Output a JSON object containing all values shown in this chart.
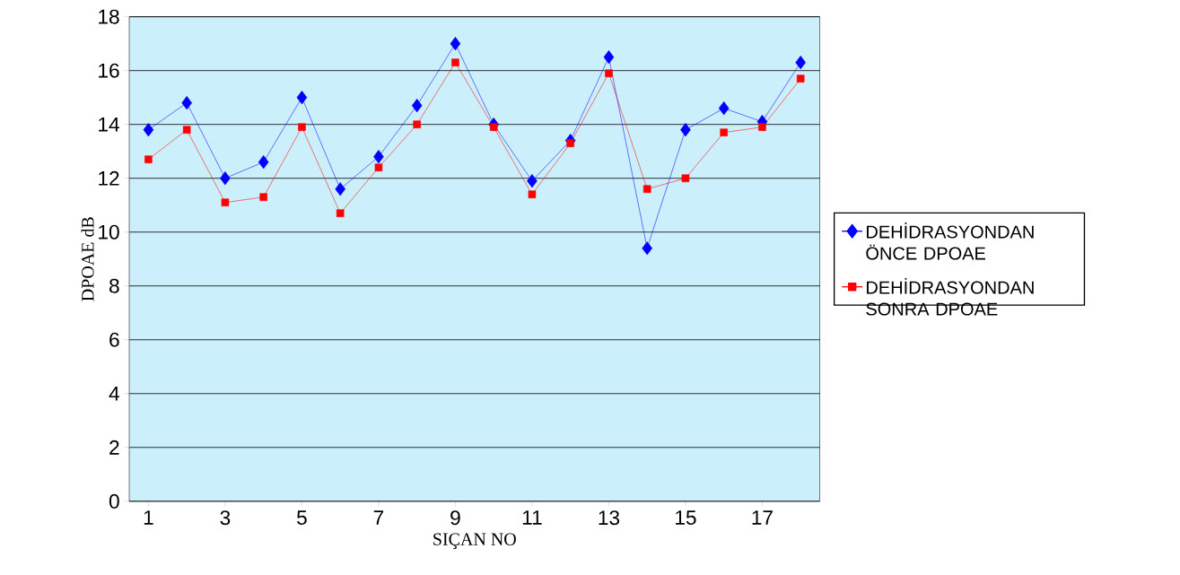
{
  "chart_data": {
    "type": "line",
    "xlabel": "SIÇAN NO",
    "ylabel": "DPOAE dB",
    "categories": [
      "1",
      null,
      "3",
      null,
      "5",
      null,
      "7",
      null,
      "9",
      null,
      "11",
      null,
      "13",
      null,
      "15",
      null,
      "17",
      null
    ],
    "series": [
      {
        "name": "DEHİDRASYONDAN ÖNCE DPOAE",
        "color": "#0000ff",
        "marker": "diamond",
        "values": [
          13.8,
          14.8,
          12.0,
          12.6,
          15.0,
          11.6,
          12.8,
          14.7,
          17.0,
          14.0,
          11.9,
          13.4,
          16.5,
          9.4,
          13.8,
          14.6,
          14.1,
          16.3
        ]
      },
      {
        "name": "DEHİDRASYONDAN SONRA DPOAE",
        "color": "#ff0000",
        "marker": "square",
        "values": [
          12.7,
          13.8,
          11.1,
          11.3,
          13.9,
          10.7,
          12.4,
          14.0,
          16.3,
          13.9,
          11.4,
          13.3,
          15.9,
          11.6,
          12.0,
          13.7,
          13.9,
          15.7
        ]
      }
    ],
    "ylim": [
      0,
      18
    ],
    "yticks": [
      0,
      2,
      4,
      6,
      8,
      10,
      12,
      14,
      16,
      18
    ],
    "grid": "y",
    "legend": "right",
    "line_style": "solid"
  }
}
